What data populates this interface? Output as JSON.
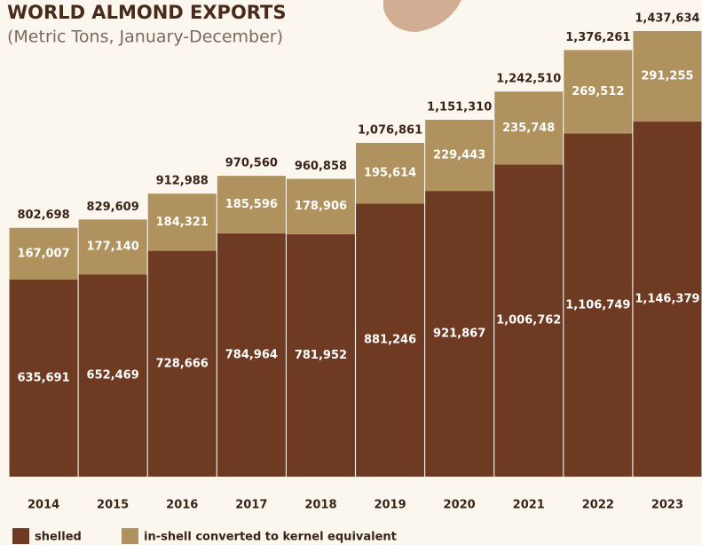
{
  "chart_data": {
    "type": "stacked_bar",
    "title": "WORLD ALMOND EXPORTS",
    "subtitle": "(Metric Tons, January-December)",
    "categories": [
      "2014",
      "2015",
      "2016",
      "2017",
      "2018",
      "2019",
      "2020",
      "2021",
      "2022",
      "2023"
    ],
    "series": [
      {
        "name": "shelled",
        "color": "#6e3b22",
        "values": [
          635691,
          652469,
          728666,
          784964,
          781952,
          881246,
          921867,
          1006762,
          1106749,
          1146379
        ],
        "value_labels": [
          "635,691",
          "652,469",
          "728,666",
          "784,964",
          "781,952",
          "881,246",
          "921,867",
          "1,006,762",
          "1,106,749",
          "1,146,379"
        ]
      },
      {
        "name": "in-shell converted to kernel equivalent",
        "color": "#b0925e",
        "values": [
          167007,
          177140,
          184321,
          185596,
          178906,
          195614,
          229443,
          235748,
          269512,
          291255
        ],
        "value_labels": [
          "167,007",
          "177,140",
          "184,321",
          "185,596",
          "178,906",
          "195,614",
          "229,443",
          "235,748",
          "269,512",
          "291,255"
        ]
      }
    ],
    "totals": [
      802698,
      829609,
      912988,
      970560,
      960858,
      1076861,
      1151310,
      1242510,
      1376261,
      1437634
    ],
    "total_labels": [
      "802,698",
      "829,609",
      "912,988",
      "970,560",
      "960,858",
      "1,076,861",
      "1,151,310",
      "1,242,510",
      "1,376,261",
      "1,437,634"
    ]
  }
}
